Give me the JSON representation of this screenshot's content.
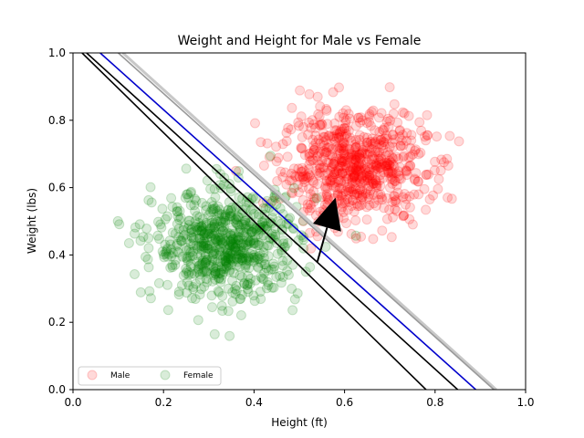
{
  "chart_data": {
    "type": "scatter",
    "title": "Weight and Height for Male vs Female",
    "xlabel": "Height (ft)",
    "ylabel": "Weight (lbs)",
    "xlim": [
      0,
      1
    ],
    "ylim": [
      0,
      1
    ],
    "x_ticks": [
      "0.0",
      "0.2",
      "0.4",
      "0.6",
      "0.8",
      "1.0"
    ],
    "y_ticks": [
      "0.0",
      "0.2",
      "0.4",
      "0.6",
      "0.8",
      "1.0"
    ],
    "legend_position": "lower-left",
    "series": [
      {
        "name": "Male",
        "color": "#ff0000",
        "center": [
          0.62,
          0.66
        ],
        "spread": [
          0.08,
          0.08
        ],
        "count": 700,
        "opacity": 0.15
      },
      {
        "name": "Female",
        "color": "#008000",
        "center": [
          0.34,
          0.43
        ],
        "spread": [
          0.08,
          0.08
        ],
        "count": 700,
        "opacity": 0.15
      }
    ],
    "decision_lines": [
      {
        "color": "#0000cc",
        "x1": 0.06,
        "y1": 1.0,
        "x2": 0.89,
        "y2": 0.0
      },
      {
        "color": "#000000",
        "x1": 0.02,
        "y1": 1.0,
        "x2": 0.78,
        "y2": 0.0
      },
      {
        "color": "#000000",
        "x1": 0.03,
        "y1": 1.0,
        "x2": 0.85,
        "y2": 0.0
      },
      {
        "color": "#999999",
        "x1": 0.1,
        "y1": 1.0,
        "x2": 0.93,
        "y2": 0.0
      },
      {
        "color": "#c8c8c8",
        "x1": 0.11,
        "y1": 1.0,
        "x2": 0.935,
        "y2": 0.0
      }
    ],
    "arrow": {
      "color": "#000000",
      "from": [
        0.54,
        0.38
      ],
      "to": [
        0.58,
        0.57
      ]
    }
  }
}
